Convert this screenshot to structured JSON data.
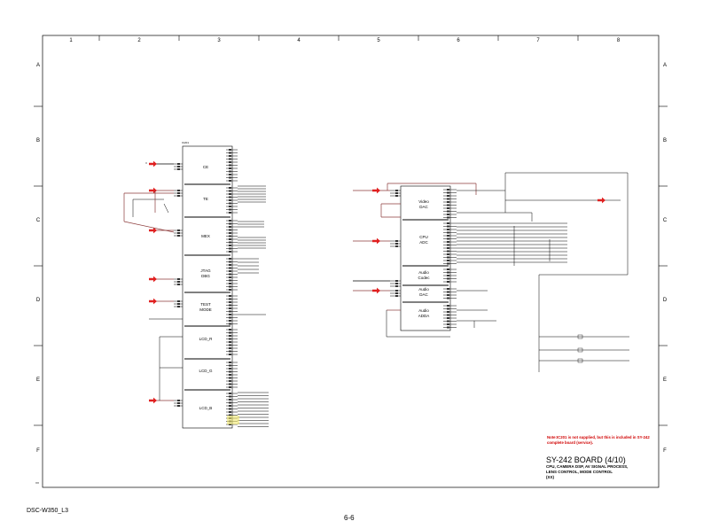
{
  "sheet": {
    "columns": [
      "1",
      "2",
      "3",
      "4",
      "5",
      "6",
      "7",
      "8"
    ],
    "rows": [
      "A",
      "B",
      "C",
      "D",
      "E",
      "F"
    ],
    "model_label": "DSC-W350_L3",
    "page_number": "6-6"
  },
  "left_ic": {
    "blocks": [
      "CE",
      "TE",
      "MEX",
      "JTAG DBG",
      "TEST MODE",
      "LCD_R",
      "LCD_G",
      "LCD_B"
    ]
  },
  "right_ic": {
    "blocks": [
      "Video DAC",
      "CPU ADC",
      "Audio Codec",
      "Audio DAC",
      "Audio ADDA"
    ]
  },
  "title_block": {
    "note": "Note:IC201 is not supplied, but this is included in SY-242 complete board (service).",
    "title": "SY-242 BOARD (4/10)",
    "subtitle_line1": "CPU, CAMERA DSP, AV SIGNAL PROCESS,",
    "subtitle_line2": "LENS CONTROL, MODE CONTROL",
    "subtitle_line3": "(XX)"
  },
  "colors": {
    "wire": "#8b3a3a",
    "arrow": "#e02020",
    "line": "#000000",
    "note": "#d00000"
  }
}
